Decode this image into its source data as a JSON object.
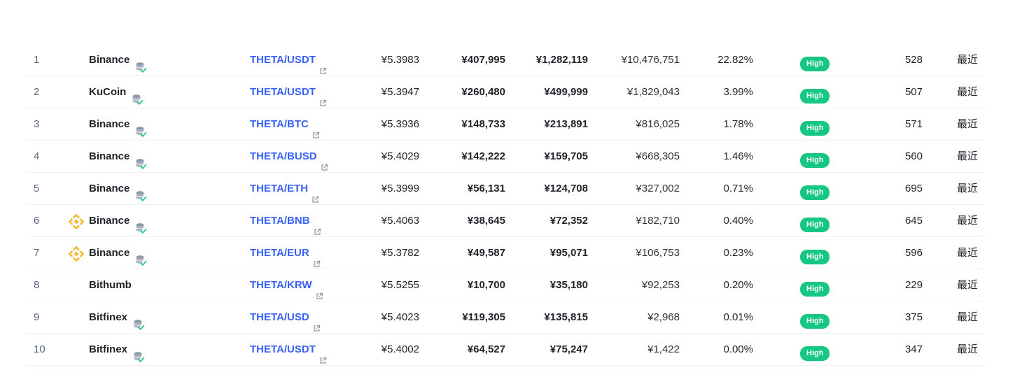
{
  "table": {
    "rows": [
      {
        "rank": "1",
        "exchange": "Binance",
        "logo": "",
        "verified_icon": "database-verified-icon",
        "pair": "THETA/USDT",
        "price": "¥5.3983",
        "depth_plus": "¥407,995",
        "depth_minus": "¥1,282,119",
        "volume": "¥10,476,751",
        "volume_pct": "22.82%",
        "confidence": "High",
        "liquidity": "528",
        "updated": "最近"
      },
      {
        "rank": "2",
        "exchange": "KuCoin",
        "logo": "",
        "verified_icon": "database-verified-icon",
        "pair": "THETA/USDT",
        "price": "¥5.3947",
        "depth_plus": "¥260,480",
        "depth_minus": "¥499,999",
        "volume": "¥1,829,043",
        "volume_pct": "3.99%",
        "confidence": "High",
        "liquidity": "507",
        "updated": "最近"
      },
      {
        "rank": "3",
        "exchange": "Binance",
        "logo": "",
        "verified_icon": "database-verified-icon",
        "pair": "THETA/BTC",
        "price": "¥5.3936",
        "depth_plus": "¥148,733",
        "depth_minus": "¥213,891",
        "volume": "¥816,025",
        "volume_pct": "1.78%",
        "confidence": "High",
        "liquidity": "571",
        "updated": "最近"
      },
      {
        "rank": "4",
        "exchange": "Binance",
        "logo": "",
        "verified_icon": "database-verified-icon",
        "pair": "THETA/BUSD",
        "price": "¥5.4029",
        "depth_plus": "¥142,222",
        "depth_minus": "¥159,705",
        "volume": "¥668,305",
        "volume_pct": "1.46%",
        "confidence": "High",
        "liquidity": "560",
        "updated": "最近"
      },
      {
        "rank": "5",
        "exchange": "Binance",
        "logo": "",
        "verified_icon": "database-verified-icon",
        "pair": "THETA/ETH",
        "price": "¥5.3999",
        "depth_plus": "¥56,131",
        "depth_minus": "¥124,708",
        "volume": "¥327,002",
        "volume_pct": "0.71%",
        "confidence": "High",
        "liquidity": "695",
        "updated": "最近"
      },
      {
        "rank": "6",
        "exchange": "Binance",
        "logo": "binance-logo-icon",
        "verified_icon": "database-verified-icon",
        "pair": "THETA/BNB",
        "price": "¥5.4063",
        "depth_plus": "¥38,645",
        "depth_minus": "¥72,352",
        "volume": "¥182,710",
        "volume_pct": "0.40%",
        "confidence": "High",
        "liquidity": "645",
        "updated": "最近"
      },
      {
        "rank": "7",
        "exchange": "Binance",
        "logo": "binance-logo-icon",
        "verified_icon": "database-verified-icon",
        "pair": "THETA/EUR",
        "price": "¥5.3782",
        "depth_plus": "¥49,587",
        "depth_minus": "¥95,071",
        "volume": "¥106,753",
        "volume_pct": "0.23%",
        "confidence": "High",
        "liquidity": "596",
        "updated": "最近"
      },
      {
        "rank": "8",
        "exchange": "Bithumb",
        "logo": "",
        "verified_icon": "",
        "pair": "THETA/KRW",
        "price": "¥5.5255",
        "depth_plus": "¥10,700",
        "depth_minus": "¥35,180",
        "volume": "¥92,253",
        "volume_pct": "0.20%",
        "confidence": "High",
        "liquidity": "229",
        "updated": "最近"
      },
      {
        "rank": "9",
        "exchange": "Bitfinex",
        "logo": "",
        "verified_icon": "database-verified-icon",
        "pair": "THETA/USD",
        "price": "¥5.4023",
        "depth_plus": "¥119,305",
        "depth_minus": "¥135,815",
        "volume": "¥2,968",
        "volume_pct": "0.01%",
        "confidence": "High",
        "liquidity": "375",
        "updated": "最近"
      },
      {
        "rank": "10",
        "exchange": "Bitfinex",
        "logo": "",
        "verified_icon": "database-verified-icon",
        "pair": "THETA/USDT",
        "price": "¥5.4002",
        "depth_plus": "¥64,527",
        "depth_minus": "¥75,247",
        "volume": "¥1,422",
        "volume_pct": "0.00%",
        "confidence": "High",
        "liquidity": "347",
        "updated": "最近"
      }
    ]
  },
  "colors": {
    "link": "#3861fb",
    "badge_high": "#16c784",
    "binance_logo": "#f3ba2f",
    "verified_check": "#16c784",
    "db_icon": "#8c97a8"
  }
}
